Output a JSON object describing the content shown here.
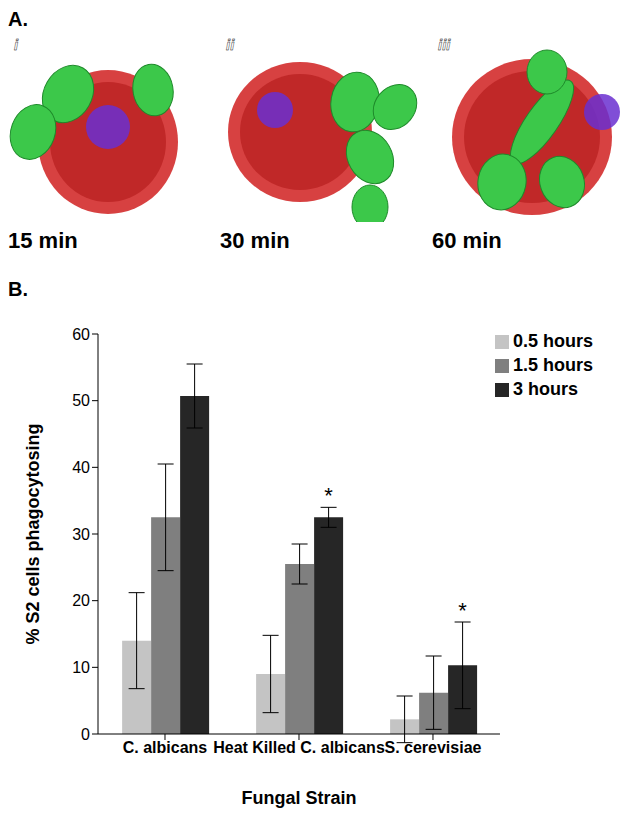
{
  "panel_a": {
    "label": "A.",
    "images": [
      {
        "numeral": "i",
        "caption": "15 min"
      },
      {
        "numeral": "ii",
        "caption": "30 min"
      },
      {
        "numeral": "iii",
        "caption": "60 min"
      }
    ]
  },
  "panel_b_label": "B.",
  "chart_data": {
    "type": "bar",
    "categories": [
      "C. albicans",
      "Heat Killed C. albicans",
      "S. cerevisiae"
    ],
    "series": [
      {
        "name": "0.5 hours",
        "color": "#c4c4c4",
        "values": [
          14,
          9,
          2.2
        ],
        "errors": [
          7.2,
          5.8,
          3.5
        ]
      },
      {
        "name": "1.5 hours",
        "color": "#7f7f7f",
        "values": [
          32.5,
          25.5,
          6.2
        ],
        "errors": [
          8,
          3,
          5.5
        ]
      },
      {
        "name": "3 hours",
        "color": "#262626",
        "values": [
          50.7,
          32.5,
          10.3
        ],
        "errors": [
          4.8,
          1.5,
          6.5
        ],
        "significance": [
          null,
          "*",
          "*"
        ]
      }
    ],
    "x_label": "Fungal Strain",
    "y_label": "% S2 cells phagocytosing",
    "ylim": [
      0,
      60
    ],
    "yticks": [
      0,
      10,
      20,
      30,
      40,
      50,
      60
    ],
    "grid": false,
    "legend": "top-right"
  }
}
